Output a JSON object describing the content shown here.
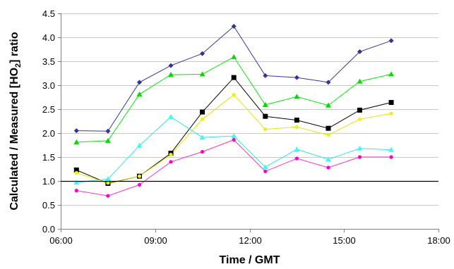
{
  "chart_data": {
    "type": "line",
    "xlabel": "Time / GMT",
    "ylabel_parts": [
      "Calculated / Measured [HO",
      "2",
      "] ratio"
    ],
    "x_ticks": [
      "06:00",
      "09:00",
      "12:00",
      "15:00",
      "18:00"
    ],
    "x_tick_hours": [
      6,
      9,
      12,
      15,
      18
    ],
    "y_ticks": [
      "0.0",
      "0.5",
      "1.0",
      "1.5",
      "2.0",
      "2.5",
      "3.0",
      "3.5",
      "4.0",
      "4.5"
    ],
    "y_tick_values": [
      0,
      0.5,
      1,
      1.5,
      2,
      2.5,
      3,
      3.5,
      4,
      4.5
    ],
    "xlim_hours": [
      6,
      18
    ],
    "ylim": [
      0,
      4.5
    ],
    "reference_line_y": 1.0,
    "x_hours": [
      6.5,
      7.5,
      8.5,
      9.5,
      10.5,
      11.5,
      12.5,
      13.5,
      14.5,
      15.5,
      16.5
    ],
    "series": [
      {
        "marker": "diamond",
        "line_color": "#3333aa",
        "marker_color": "#333399",
        "values": [
          2.05,
          2.04,
          3.06,
          3.41,
          3.66,
          4.23,
          3.2,
          3.16,
          3.06,
          3.7,
          3.93
        ]
      },
      {
        "marker": "triangle",
        "line_color": "#00ee00",
        "marker_color": "#00dd00",
        "values": [
          1.81,
          1.84,
          2.81,
          3.22,
          3.23,
          3.59,
          2.59,
          2.76,
          2.58,
          3.08,
          3.23
        ]
      },
      {
        "marker": "square",
        "line_color": "#000000",
        "marker_color": "#000000",
        "values": [
          1.23,
          0.95,
          1.1,
          1.58,
          2.44,
          3.16,
          2.35,
          2.27,
          2.1,
          2.48,
          2.64
        ]
      },
      {
        "marker": "circle",
        "line_color": "#e6e600",
        "marker_color": "#f2f200",
        "values": [
          1.17,
          0.96,
          1.1,
          1.55,
          2.29,
          2.8,
          2.08,
          2.13,
          1.96,
          2.29,
          2.41
        ]
      },
      {
        "marker": "triangle",
        "line_color": "#33e6e6",
        "marker_color": "#33ffff",
        "values": [
          0.97,
          1.04,
          1.74,
          2.34,
          1.91,
          1.94,
          1.29,
          1.66,
          1.45,
          1.68,
          1.65
        ]
      },
      {
        "marker": "circle",
        "line_color": "#ff33cc",
        "marker_color": "#ff00cc",
        "values": [
          0.8,
          0.69,
          0.92,
          1.4,
          1.61,
          1.86,
          1.2,
          1.47,
          1.28,
          1.5,
          1.5
        ]
      }
    ]
  }
}
